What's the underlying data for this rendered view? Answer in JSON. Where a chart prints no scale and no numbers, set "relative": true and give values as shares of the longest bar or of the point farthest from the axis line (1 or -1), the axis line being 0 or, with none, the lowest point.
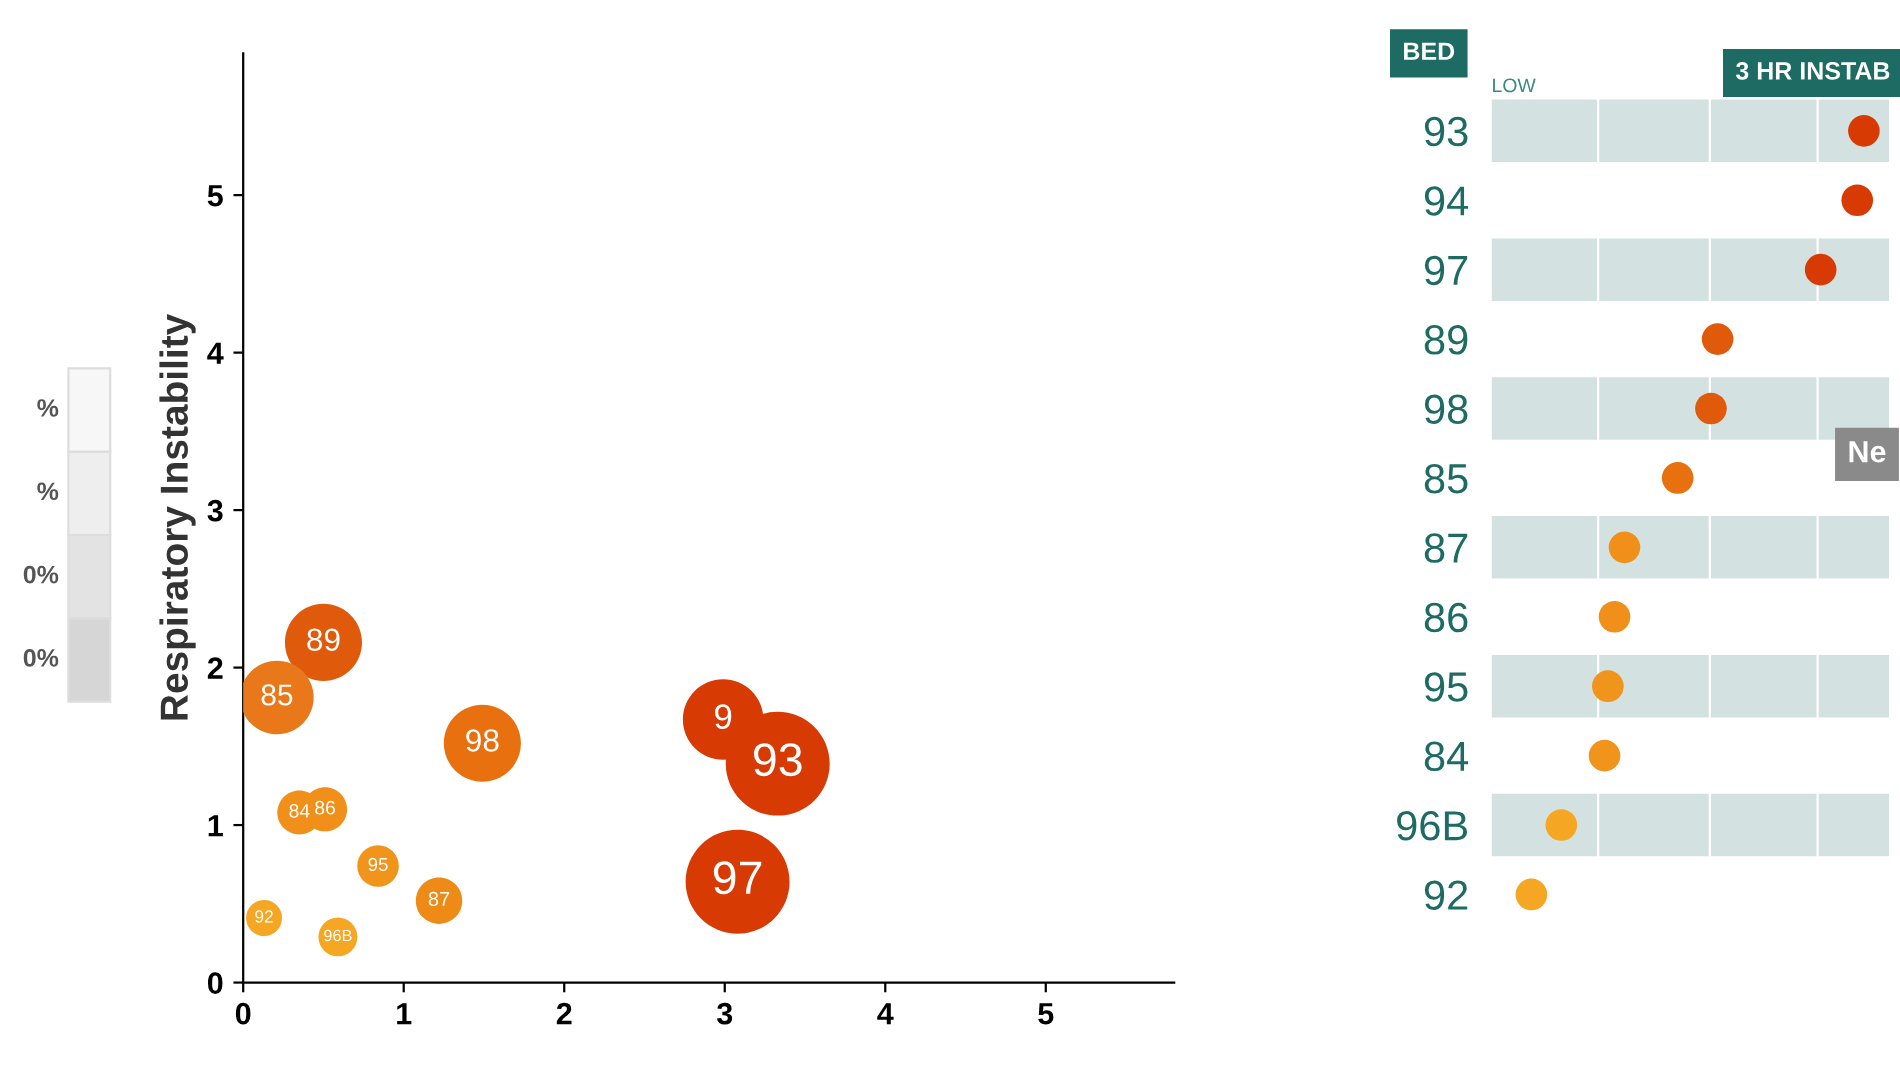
{
  "chart_data": [
    {
      "type": "bubble",
      "ylabel": "Respiratory Instability",
      "xlim": [
        0,
        5.8
      ],
      "ylim": [
        0,
        5.9
      ],
      "xticks": [
        0,
        1,
        2,
        3,
        4,
        5
      ],
      "yticks": [
        0,
        1,
        2,
        3,
        4,
        5
      ],
      "grid": false,
      "x": [
        0.5,
        0.21,
        1.49,
        2.99,
        3.33,
        3.08,
        0.35,
        0.51,
        0.84,
        1.22,
        0.13,
        0.59
      ],
      "values": [
        2.16,
        1.81,
        1.52,
        1.67,
        1.39,
        0.64,
        1.08,
        1.1,
        0.74,
        0.52,
        0.41,
        0.29
      ],
      "sizes": [
        0.55,
        0.5,
        0.55,
        0.6,
        1,
        1,
        0.18,
        0.18,
        0.16,
        0.2,
        0.12,
        0.14
      ],
      "colors": [
        "#e05a0c",
        "#e8781a",
        "#e8700f",
        "#d83a04",
        "#d83a04",
        "#d83a04",
        "#f0901a",
        "#f0901a",
        "#f0941c",
        "#ee8a16",
        "#f5a623",
        "#f5a623"
      ],
      "annotations": [
        {
          "text": "89",
          "x": 0.5,
          "y": 2.16
        },
        {
          "text": "85",
          "x": 0.21,
          "y": 1.81
        },
        {
          "text": "98",
          "x": 1.49,
          "y": 1.52
        },
        {
          "text": "9",
          "x": 2.99,
          "y": 1.67
        },
        {
          "text": "93",
          "x": 3.33,
          "y": 1.39
        },
        {
          "text": "97",
          "x": 3.08,
          "y": 0.64
        },
        {
          "text": "84",
          "x": 0.35,
          "y": 1.08
        },
        {
          "text": "86",
          "x": 0.51,
          "y": 1.1
        },
        {
          "text": "95",
          "x": 0.84,
          "y": 0.74
        },
        {
          "text": "87",
          "x": 1.22,
          "y": 0.52
        },
        {
          "text": "92",
          "x": 0.13,
          "y": 0.41
        },
        {
          "text": "96B",
          "x": 0.59,
          "y": 0.29
        },
        "%",
        "%",
        "0%",
        "0%"
      ]
    },
    {
      "type": "scatter",
      "orientation": "horizontal",
      "relative": true,
      "title": "3 HR INSTAB",
      "ylabel": "BED",
      "categories": [
        "93",
        "94",
        "97",
        "89",
        "98",
        "85",
        "87",
        "86",
        "95",
        "84",
        "96B",
        "92"
      ],
      "values": [
        1,
        0.98,
        0.87,
        0.56,
        0.54,
        0.44,
        0.28,
        0.25,
        0.23,
        0.22,
        0.09,
        0
      ],
      "colors": [
        "#d83a04",
        "#d83a04",
        "#d83a04",
        "#e05a0c",
        "#e05a0c",
        "#e8700f",
        "#f0901a",
        "#f0901a",
        "#f0941c",
        "#f0941c",
        "#f5a623",
        "#f5a623"
      ],
      "annotations": [
        "LOW",
        "Ne"
      ]
    }
  ]
}
